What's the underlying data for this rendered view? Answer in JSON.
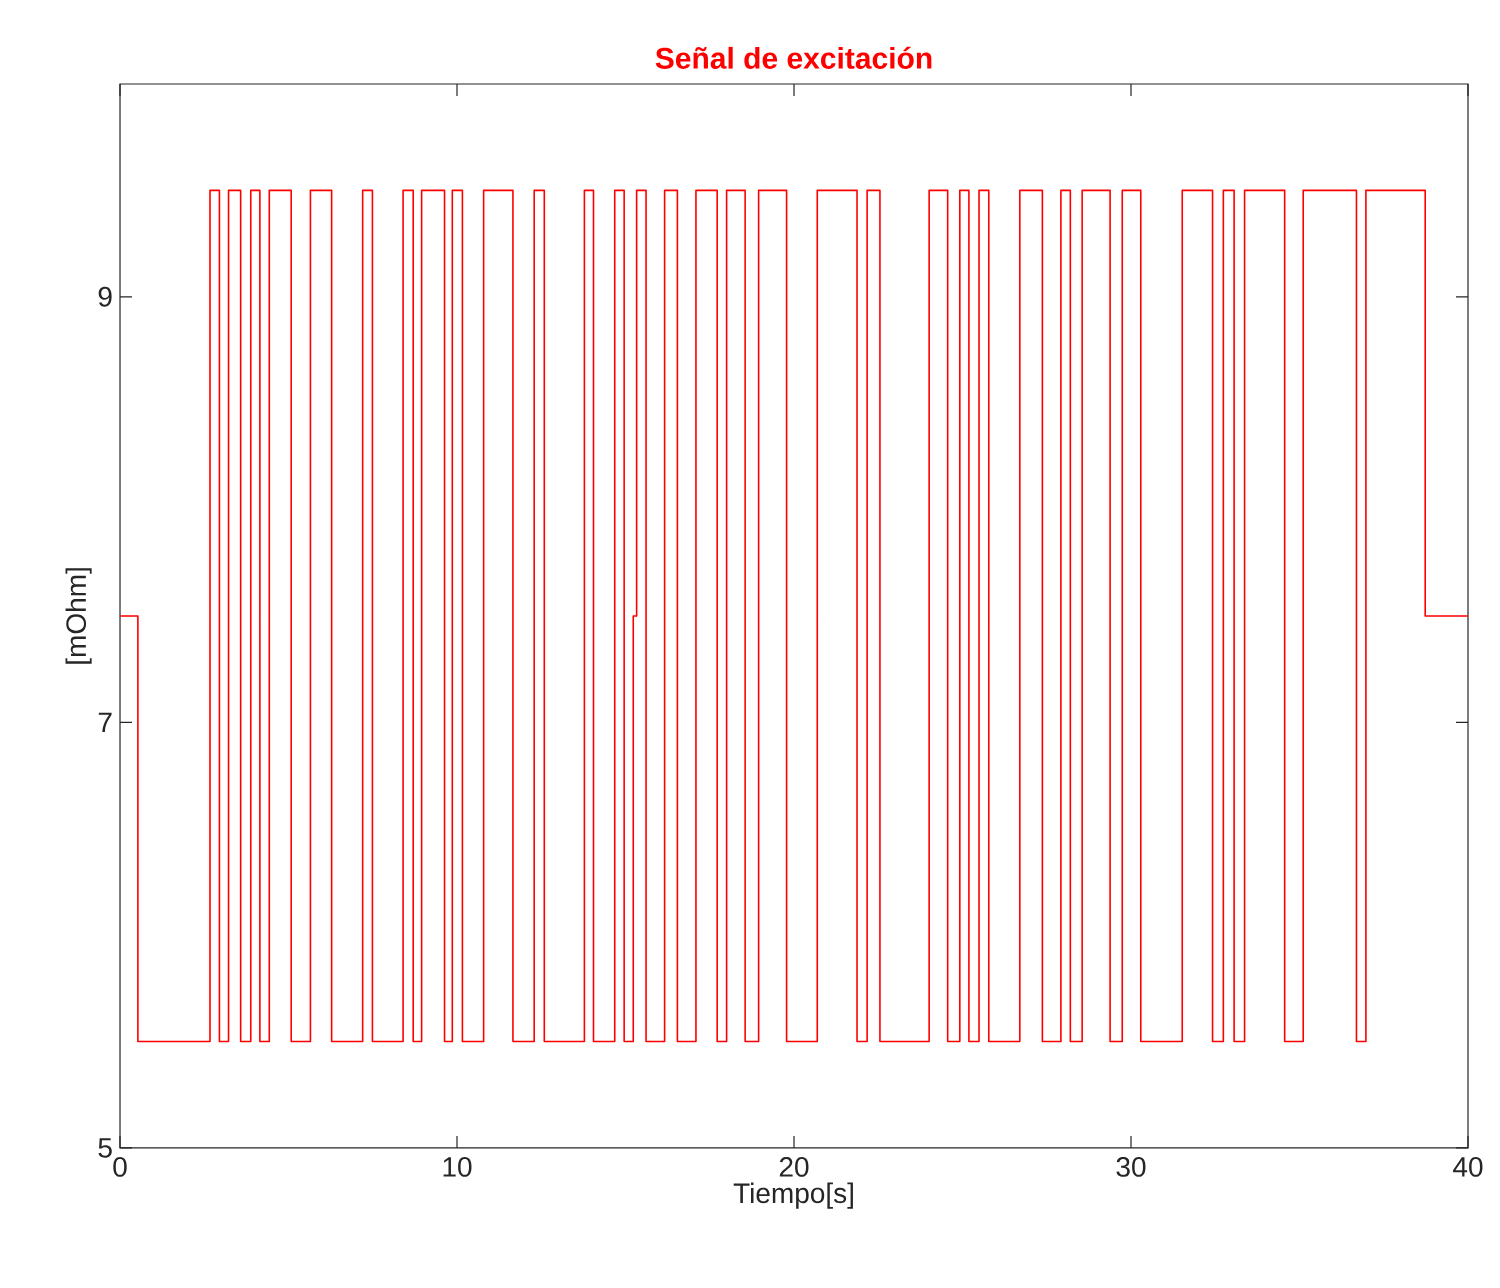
{
  "chart_data": {
    "type": "step",
    "title": "Señal de excitación",
    "xlabel": "Tiempo[s]",
    "ylabel": "[mOhm]",
    "x": [
      0,
      0.53,
      2.67,
      2.95,
      3.22,
      3.58,
      3.88,
      4.15,
      4.43,
      5.08,
      5.65,
      6.28,
      7.2,
      7.49,
      8.4,
      8.7,
      8.95,
      9.63,
      9.86,
      10.16,
      10.79,
      11.66,
      12.29,
      12.59,
      13.78,
      14.05,
      14.68,
      14.96,
      15.23,
      15.33,
      15.61,
      16.16,
      16.54,
      17.09,
      17.72,
      18.0,
      18.55,
      18.95,
      19.78,
      20.69,
      21.87,
      22.17,
      22.55,
      24.01,
      24.56,
      24.92,
      25.19,
      25.49,
      25.78,
      26.7,
      27.37,
      27.92,
      28.2,
      28.55,
      29.38,
      29.74,
      30.29,
      31.52,
      32.42,
      32.74,
      33.06,
      33.37,
      34.56,
      35.11,
      36.69,
      36.97,
      38.73,
      40
    ],
    "series": [
      {
        "color": "#ff0000",
        "values": [
          7.5,
          5.5,
          9.5,
          5.5,
          9.5,
          5.5,
          9.5,
          5.5,
          9.5,
          5.5,
          9.5,
          5.5,
          9.5,
          5.5,
          9.5,
          5.5,
          9.5,
          5.5,
          9.5,
          5.5,
          9.5,
          5.5,
          9.5,
          5.5,
          9.5,
          5.5,
          9.5,
          5.5,
          7.5,
          9.5,
          5.5,
          9.5,
          5.5,
          9.5,
          5.5,
          9.5,
          5.5,
          9.5,
          5.5,
          9.5,
          5.5,
          9.5,
          5.5,
          9.5,
          5.5,
          9.5,
          5.5,
          9.5,
          5.5,
          9.5,
          5.5,
          9.5,
          5.5,
          9.5,
          5.5,
          9.5,
          5.5,
          9.5,
          5.5,
          9.5,
          5.5,
          9.5,
          5.5,
          9.5,
          5.5,
          9.5,
          7.5,
          7.5
        ]
      }
    ],
    "xlim": [
      0,
      40
    ],
    "ylim": [
      5,
      10
    ],
    "xticks": [
      0,
      10,
      20,
      30,
      40
    ],
    "yticks": [
      5,
      7,
      9
    ],
    "grid": false
  }
}
